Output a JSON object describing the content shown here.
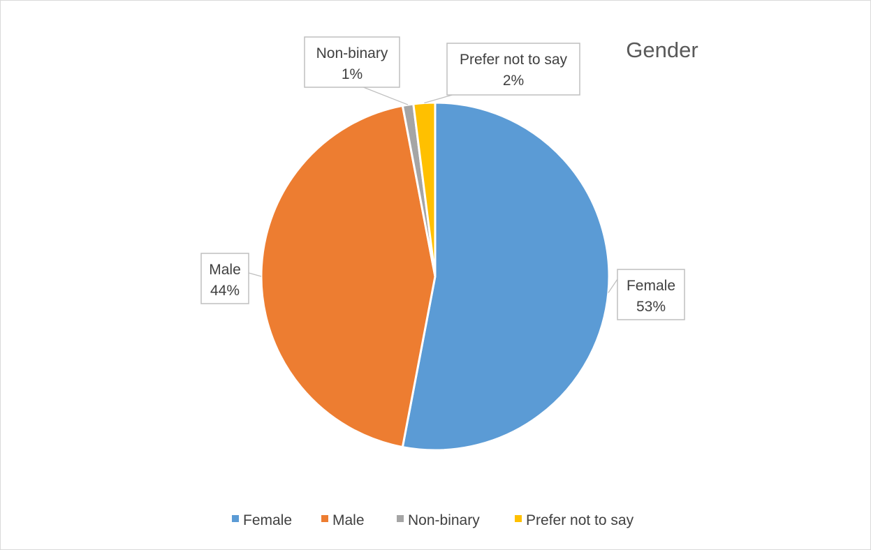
{
  "chart_data": {
    "type": "pie",
    "title": "Gender",
    "legend_position": "bottom",
    "slices": [
      {
        "label": "Female",
        "value": 53,
        "display": "53%",
        "color": "#5B9BD5"
      },
      {
        "label": "Male",
        "value": 44,
        "display": "44%",
        "color": "#ED7D31"
      },
      {
        "label": "Non-binary",
        "value": 1,
        "display": "1%",
        "color": "#A5A5A5"
      },
      {
        "label": "Prefer not to say",
        "value": 2,
        "display": "2%",
        "color": "#FFC000"
      }
    ]
  }
}
